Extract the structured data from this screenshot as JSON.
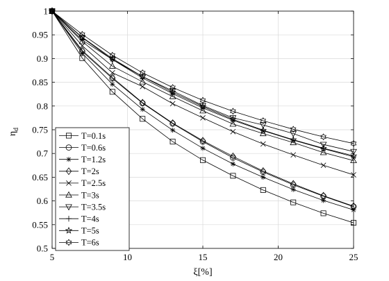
{
  "chart_data": {
    "type": "line",
    "title": "",
    "xlabel": "ξ[%]",
    "ylabel": "η",
    "ylabel_sub": "d",
    "xlim": [
      5,
      25
    ],
    "ylim": [
      0.5,
      1
    ],
    "x_ticks": [
      5,
      10,
      15,
      20,
      25
    ],
    "y_ticks": [
      0.5,
      0.55,
      0.6,
      0.65,
      0.7,
      0.75,
      0.8,
      0.85,
      0.9,
      0.95,
      1
    ],
    "x_tick_labels": [
      "5",
      "10",
      "15",
      "20",
      "25"
    ],
    "y_tick_labels": [
      "0.5",
      "0.55",
      "0.6",
      "0.65",
      "0.7",
      "0.75",
      "0.8",
      "0.85",
      "0.9",
      "0.95",
      "1"
    ],
    "grid": true,
    "legend_position": "bottom-left",
    "x": [
      5,
      7,
      9,
      11,
      13,
      15,
      17,
      19,
      21,
      23,
      25
    ],
    "series": [
      {
        "name": "T=0.1s",
        "marker": "square",
        "values": [
          1,
          0.901,
          0.83,
          0.773,
          0.725,
          0.686,
          0.653,
          0.623,
          0.597,
          0.574,
          0.554
        ]
      },
      {
        "name": "T=0.6s",
        "marker": "circle",
        "values": [
          1,
          0.915,
          0.858,
          0.806,
          0.763,
          0.725,
          0.691,
          0.661,
          0.634,
          0.61,
          0.588
        ]
      },
      {
        "name": "T=1.2s",
        "marker": "asterisk",
        "values": [
          1,
          0.911,
          0.846,
          0.793,
          0.749,
          0.711,
          0.678,
          0.65,
          0.624,
          0.601,
          0.581
        ]
      },
      {
        "name": "T=2s",
        "marker": "diamond",
        "values": [
          1,
          0.917,
          0.86,
          0.807,
          0.764,
          0.727,
          0.694,
          0.663,
          0.636,
          0.611,
          0.589
        ]
      },
      {
        "name": "T=2.5s",
        "marker": "x",
        "values": [
          1,
          0.927,
          0.87,
          0.841,
          0.805,
          0.775,
          0.746,
          0.72,
          0.697,
          0.675,
          0.655
        ]
      },
      {
        "name": "T=3s",
        "marker": "triangle-up",
        "values": [
          1,
          0.936,
          0.884,
          0.851,
          0.82,
          0.79,
          0.762,
          0.742,
          0.723,
          0.702,
          0.685
        ]
      },
      {
        "name": "T=3.5s",
        "marker": "triangle-down",
        "values": [
          1,
          0.944,
          0.898,
          0.862,
          0.832,
          0.801,
          0.775,
          0.76,
          0.742,
          0.719,
          0.704
        ]
      },
      {
        "name": "T=4s",
        "marker": "plus",
        "values": [
          1,
          0.939,
          0.898,
          0.859,
          0.826,
          0.796,
          0.77,
          0.748,
          0.728,
          0.71,
          0.693
        ]
      },
      {
        "name": "T=5s",
        "marker": "pentagram",
        "values": [
          1,
          0.945,
          0.9,
          0.862,
          0.829,
          0.799,
          0.772,
          0.749,
          0.729,
          0.711,
          0.695
        ]
      },
      {
        "name": "T=6s",
        "marker": "hexagram",
        "values": [
          1,
          0.951,
          0.907,
          0.87,
          0.839,
          0.812,
          0.789,
          0.769,
          0.751,
          0.735,
          0.721
        ]
      }
    ]
  }
}
